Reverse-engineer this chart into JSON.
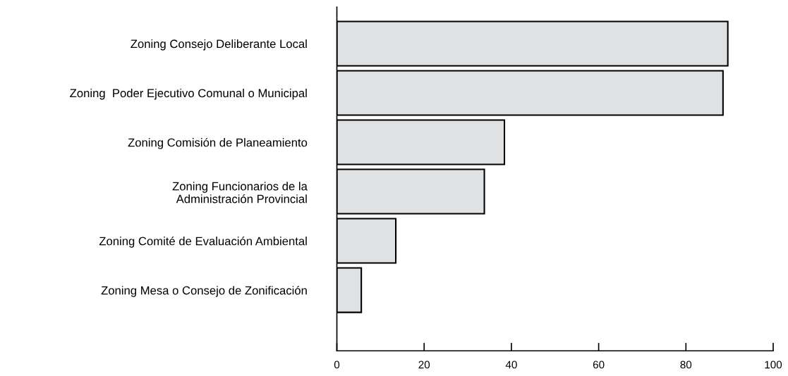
{
  "chart_data": {
    "type": "bar",
    "orientation": "horizontal",
    "categories": [
      "Zoning Consejo Deliberante Local",
      "Zoning  Poder Ejecutivo Comunal o Municipal",
      "Zoning Comisión de Planeamiento",
      "Zoning Funcionarios de la\nAdministración Provincial",
      "Zoning Comité de Evaluación Ambiental",
      "Zoning Mesa o Consejo de Zonificación"
    ],
    "values": [
      89.6,
      88.5,
      38.4,
      33.8,
      13.5,
      5.6
    ],
    "color": "#e0e1e3",
    "xlim": [
      0,
      100
    ],
    "xticks": [
      0,
      20,
      40,
      60,
      80,
      100
    ],
    "grid": false,
    "legend": false
  }
}
